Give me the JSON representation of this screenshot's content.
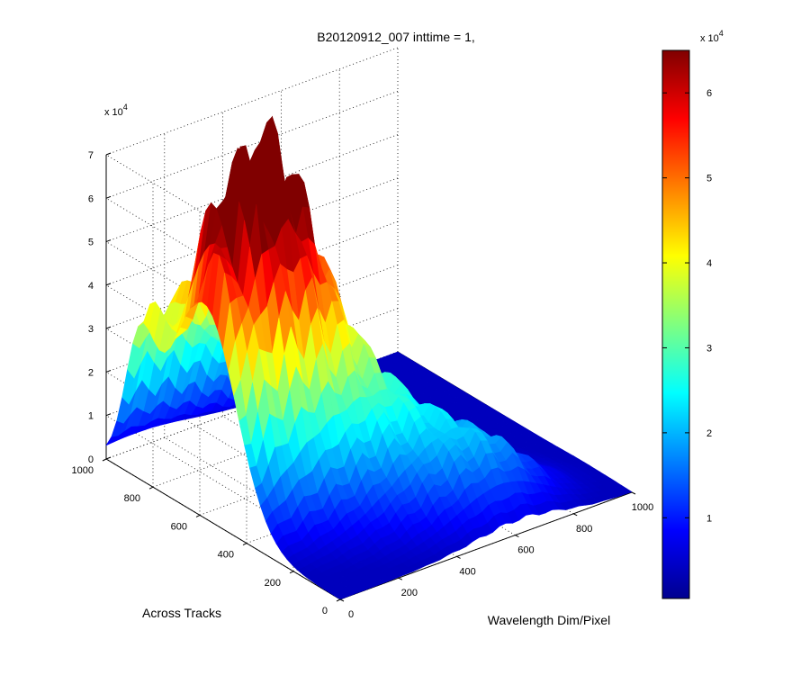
{
  "chart_data": {
    "type": "surface",
    "title": "B20120912_007 inttime = 1,",
    "xlabel": "Wavelength Dim/Pixel",
    "ylabel": "Across Tracks",
    "zlabel": "",
    "x_ticks": [
      "0",
      "200",
      "400",
      "600",
      "800",
      "1000"
    ],
    "y_ticks": [
      "0",
      "200",
      "400",
      "600",
      "800",
      "1000"
    ],
    "z_ticks": [
      "0",
      "1",
      "2",
      "3",
      "4",
      "5",
      "6",
      "7"
    ],
    "z_multiplier": "x 10",
    "z_multiplier_exp": "4",
    "xlim": [
      0,
      1000
    ],
    "ylim": [
      0,
      1000
    ],
    "zlim": [
      0,
      70000
    ],
    "grid": true,
    "colormap": "jet",
    "colorbar": {
      "ticks": [
        "1",
        "2",
        "3",
        "4",
        "5",
        "6"
      ],
      "multiplier": "x 10",
      "multiplier_exp": "4",
      "clim": [
        500,
        65000
      ]
    },
    "peak_value": 66000,
    "colors": {
      "low": "#00008F",
      "mid": "#00FFFF",
      "high": "#800000"
    }
  }
}
